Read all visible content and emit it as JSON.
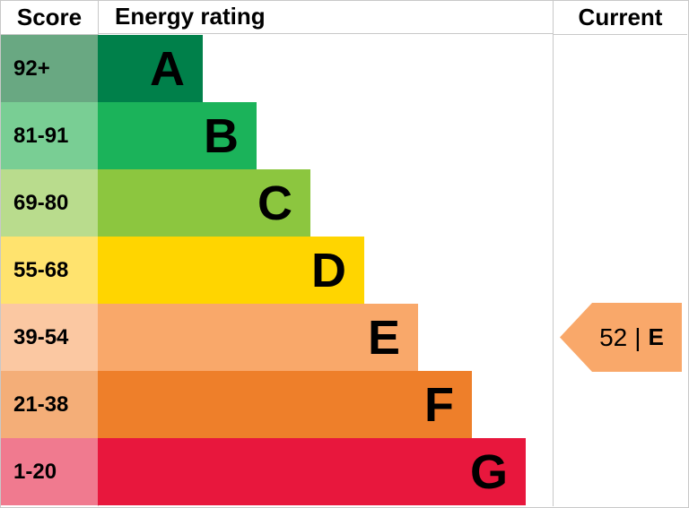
{
  "headers": {
    "score": "Score",
    "energy_rating": "Energy rating",
    "current": "Current"
  },
  "chart_data": {
    "type": "bar",
    "bands": [
      {
        "score_range": "92+",
        "label": "A",
        "color": "#00804a",
        "score_color": "#69a882"
      },
      {
        "score_range": "81-91",
        "label": "B",
        "color": "#1bb35a",
        "score_color": "#79ce94"
      },
      {
        "score_range": "69-80",
        "label": "C",
        "color": "#8cc63f",
        "score_color": "#b9dc8d"
      },
      {
        "score_range": "55-68",
        "label": "D",
        "color": "#ffd500",
        "score_color": "#ffe36e"
      },
      {
        "score_range": "39-54",
        "label": "E",
        "color": "#f9a86a",
        "score_color": "#fbc8a2"
      },
      {
        "score_range": "21-38",
        "label": "F",
        "color": "#ee7f2a",
        "score_color": "#f4ae78"
      },
      {
        "score_range": "1-20",
        "label": "G",
        "color": "#e8173d",
        "score_color": "#f07a8f"
      }
    ],
    "current": {
      "score": "52",
      "separator": "|",
      "band": "E",
      "color": "#f9a86a"
    }
  }
}
